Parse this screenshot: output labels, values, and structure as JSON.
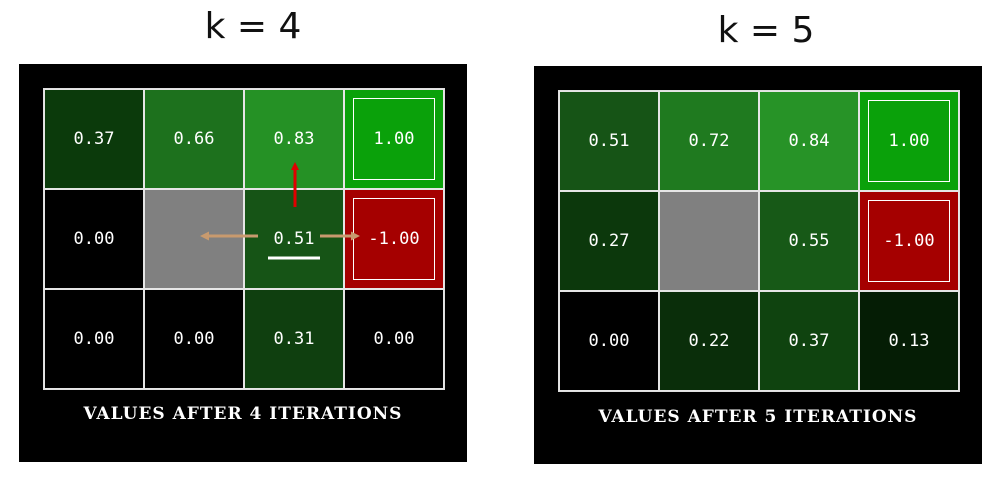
{
  "left": {
    "heading": "k = 4",
    "caption": "VALUES AFTER 4 ITERATIONS",
    "cells": [
      {
        "value": "0.37",
        "color": "#0b3a0b"
      },
      {
        "value": "0.66",
        "color": "#1d711d"
      },
      {
        "value": "0.83",
        "color": "#259125"
      },
      {
        "value": "1.00",
        "color": "#0aa10a",
        "terminal": true
      },
      {
        "value": "0.00",
        "color": "#000000"
      },
      {
        "value": "",
        "color": "#808080",
        "wall": true
      },
      {
        "value": "0.51",
        "color": "#165416"
      },
      {
        "value": "-1.00",
        "color": "#a50000",
        "terminal": true
      },
      {
        "value": "0.00",
        "color": "#000000"
      },
      {
        "value": "0.00",
        "color": "#000000"
      },
      {
        "value": "0.31",
        "color": "#0f3f0f"
      },
      {
        "value": "0.00",
        "color": "#000000"
      }
    ]
  },
  "right": {
    "heading": "k = 5",
    "caption": "VALUES AFTER 5 ITERATIONS",
    "cells": [
      {
        "value": "0.51",
        "color": "#165416"
      },
      {
        "value": "0.72",
        "color": "#1f7a1f"
      },
      {
        "value": "0.84",
        "color": "#279327"
      },
      {
        "value": "1.00",
        "color": "#0aa10a",
        "terminal": true
      },
      {
        "value": "0.27",
        "color": "#0c380c"
      },
      {
        "value": "",
        "color": "#808080",
        "wall": true
      },
      {
        "value": "0.55",
        "color": "#175917"
      },
      {
        "value": "-1.00",
        "color": "#a50000",
        "terminal": true
      },
      {
        "value": "0.00",
        "color": "#000000"
      },
      {
        "value": "0.22",
        "color": "#0a2e0a"
      },
      {
        "value": "0.37",
        "color": "#0f430f"
      },
      {
        "value": "0.13",
        "color": "#051d05"
      }
    ]
  },
  "annotations": {
    "arrow_up_color": "#e00000",
    "arrow_side_color": "#c89a6e",
    "underline_color": "#ffffff"
  }
}
